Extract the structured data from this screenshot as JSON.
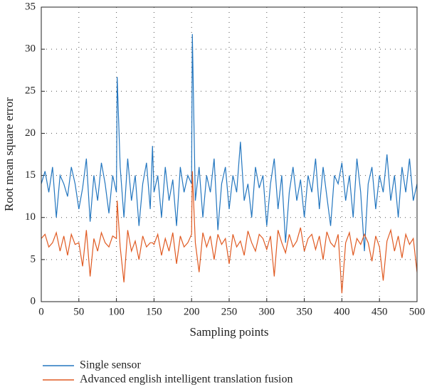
{
  "chart_data": {
    "type": "line",
    "xlabel": "Sampling points",
    "ylabel": "Root mean square error",
    "x": [
      0,
      5,
      10,
      15,
      20,
      25,
      30,
      35,
      40,
      45,
      50,
      55,
      60,
      65,
      70,
      75,
      80,
      85,
      90,
      95,
      100,
      101,
      105,
      110,
      115,
      120,
      125,
      130,
      135,
      140,
      145,
      148,
      150,
      155,
      160,
      165,
      170,
      175,
      180,
      185,
      190,
      195,
      200,
      201,
      205,
      210,
      215,
      220,
      225,
      230,
      235,
      240,
      245,
      250,
      255,
      260,
      265,
      270,
      275,
      280,
      285,
      290,
      295,
      300,
      305,
      310,
      315,
      320,
      325,
      330,
      335,
      340,
      345,
      350,
      355,
      360,
      365,
      370,
      375,
      380,
      385,
      390,
      395,
      400,
      405,
      410,
      415,
      420,
      425,
      430,
      435,
      440,
      445,
      450,
      455,
      460,
      465,
      470,
      475,
      480,
      485,
      490,
      495,
      500
    ],
    "series": [
      {
        "name": "Single sensor",
        "color": "#2376bf",
        "values": [
          14,
          15.5,
          13,
          16,
          10,
          15,
          14,
          12.5,
          16,
          14,
          11,
          13.5,
          17,
          9.5,
          15,
          12,
          16.5,
          14,
          10.5,
          15,
          13,
          26.7,
          16,
          10,
          17,
          12,
          15,
          9,
          14,
          16.5,
          11,
          18.5,
          13,
          15,
          10,
          16,
          12,
          14.5,
          9,
          16,
          13,
          15,
          14,
          31.8,
          12,
          16,
          10,
          15,
          13,
          17,
          8.5,
          14,
          16,
          11,
          15,
          13,
          19,
          12,
          14,
          10,
          16,
          13.5,
          15,
          9,
          14,
          17,
          11,
          15,
          7,
          13,
          16,
          12,
          14.5,
          10,
          15,
          13,
          17,
          11,
          16,
          12.5,
          9,
          15,
          14,
          16.5,
          12,
          15,
          10,
          17,
          13,
          6,
          14,
          16,
          11,
          15,
          13,
          17.5,
          12,
          15,
          10,
          16,
          13,
          17,
          12,
          14
        ]
      },
      {
        "name": "Advanced english intelligent translation fusion",
        "color": "#e05a22",
        "values": [
          7.5,
          8,
          6.5,
          7,
          8.2,
          6,
          7.8,
          5.5,
          8,
          6.8,
          7,
          4.2,
          8.5,
          3,
          7.5,
          6,
          8.2,
          7,
          6.5,
          7.8,
          7.5,
          12,
          6.5,
          2.3,
          8.5,
          6,
          7.2,
          5,
          7.8,
          6.5,
          7,
          7,
          6.8,
          8,
          5.5,
          7.5,
          6,
          8.2,
          4.5,
          7.8,
          6.5,
          7,
          8,
          15.5,
          7,
          3.5,
          8.2,
          6.5,
          7.8,
          5,
          8,
          6.8,
          7.5,
          4.5,
          8,
          6.5,
          7.2,
          5.5,
          8.4,
          7,
          6,
          8,
          7.5,
          6.2,
          7.8,
          3,
          8.5,
          7,
          5.8,
          8,
          6.5,
          7.2,
          8.8,
          6,
          7.5,
          8,
          6.2,
          7.8,
          5,
          8.3,
          7,
          6.5,
          8,
          1,
          7,
          8.2,
          5.5,
          7.5,
          6.8,
          8,
          7,
          4.8,
          7.8,
          6.5,
          2.5,
          7.2,
          8.5,
          6,
          7.8,
          5.2,
          8,
          6.8,
          7.5,
          3.5
        ]
      }
    ],
    "xlim": [
      0,
      500
    ],
    "xticks": [
      0,
      50,
      100,
      150,
      200,
      250,
      300,
      350,
      400,
      450,
      500
    ],
    "ylim": [
      0,
      35
    ],
    "yticks": [
      0,
      5,
      10,
      15,
      20,
      25,
      30,
      35
    ],
    "grid": true
  }
}
